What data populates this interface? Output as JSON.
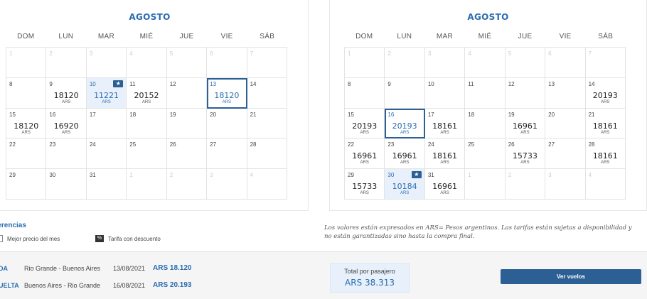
{
  "calendars": [
    {
      "title": "AGOSTO",
      "weekdays": [
        "DOM",
        "LUN",
        "MAR",
        "MIÉ",
        "JUE",
        "VIE",
        "SÁB"
      ],
      "cells": [
        {
          "day": "1",
          "other": true
        },
        {
          "day": "2",
          "other": true
        },
        {
          "day": "3",
          "other": true
        },
        {
          "day": "4",
          "other": true
        },
        {
          "day": "5",
          "other": true
        },
        {
          "day": "6",
          "other": true
        },
        {
          "day": "7",
          "other": true
        },
        {
          "day": "8"
        },
        {
          "day": "9",
          "price": "18120",
          "currency": "ARS"
        },
        {
          "day": "10",
          "price": "11221",
          "currency": "ARS",
          "best": true,
          "discount": true
        },
        {
          "day": "11",
          "price": "20152",
          "currency": "ARS"
        },
        {
          "day": "12"
        },
        {
          "day": "13",
          "price": "18120",
          "currency": "ARS",
          "selected": true
        },
        {
          "day": "14"
        },
        {
          "day": "15",
          "price": "18120",
          "currency": "ARS"
        },
        {
          "day": "16",
          "price": "16920",
          "currency": "ARS"
        },
        {
          "day": "17"
        },
        {
          "day": "18"
        },
        {
          "day": "19"
        },
        {
          "day": "20"
        },
        {
          "day": "21"
        },
        {
          "day": "22"
        },
        {
          "day": "23"
        },
        {
          "day": "24"
        },
        {
          "day": "25"
        },
        {
          "day": "26"
        },
        {
          "day": "27"
        },
        {
          "day": "28"
        },
        {
          "day": "29"
        },
        {
          "day": "30"
        },
        {
          "day": "31"
        },
        {
          "day": "1",
          "other": true
        },
        {
          "day": "2",
          "other": true
        },
        {
          "day": "3",
          "other": true
        },
        {
          "day": "4",
          "other": true
        }
      ]
    },
    {
      "title": "AGOSTO",
      "weekdays": [
        "DOM",
        "LUN",
        "MAR",
        "MIÉ",
        "JUE",
        "VIE",
        "SÁB"
      ],
      "cells": [
        {
          "day": "1",
          "other": true
        },
        {
          "day": "2",
          "other": true
        },
        {
          "day": "3",
          "other": true
        },
        {
          "day": "4",
          "other": true
        },
        {
          "day": "5",
          "other": true
        },
        {
          "day": "6",
          "other": true
        },
        {
          "day": "7",
          "other": true
        },
        {
          "day": "8"
        },
        {
          "day": "9"
        },
        {
          "day": "10"
        },
        {
          "day": "11"
        },
        {
          "day": "12"
        },
        {
          "day": "13"
        },
        {
          "day": "14",
          "price": "20193",
          "currency": "ARS"
        },
        {
          "day": "15",
          "price": "20193",
          "currency": "ARS"
        },
        {
          "day": "16",
          "price": "20193",
          "currency": "ARS",
          "selected": true
        },
        {
          "day": "17",
          "price": "18161",
          "currency": "ARS"
        },
        {
          "day": "18"
        },
        {
          "day": "19",
          "price": "16961",
          "currency": "ARS"
        },
        {
          "day": "20"
        },
        {
          "day": "21",
          "price": "18161",
          "currency": "ARS"
        },
        {
          "day": "22",
          "price": "16961",
          "currency": "ARS"
        },
        {
          "day": "23",
          "price": "16961",
          "currency": "ARS"
        },
        {
          "day": "24",
          "price": "18161",
          "currency": "ARS"
        },
        {
          "day": "25"
        },
        {
          "day": "26",
          "price": "15733",
          "currency": "ARS"
        },
        {
          "day": "27"
        },
        {
          "day": "28",
          "price": "18161",
          "currency": "ARS"
        },
        {
          "day": "29",
          "price": "15733",
          "currency": "ARS"
        },
        {
          "day": "30",
          "price": "10184",
          "currency": "ARS",
          "best": true,
          "discount": true
        },
        {
          "day": "31",
          "price": "16961",
          "currency": "ARS"
        },
        {
          "day": "1",
          "other": true
        },
        {
          "day": "2",
          "other": true
        },
        {
          "day": "3",
          "other": true
        },
        {
          "day": "4",
          "other": true
        }
      ]
    }
  ],
  "legend": {
    "title": "ferencias",
    "best_label": "Mejor precio del mes",
    "discount_label": "Tarifa con descuento"
  },
  "disclaimer": "Los valores están expresados en ARS= Pesos argentinos. Las tarifas están sujetas a disponibilidad y no están garantizadas sino hasta la compra final.",
  "summary": {
    "legs": [
      {
        "type": "DA",
        "route": "Rio Grande - Buenos Aires",
        "date": "13/08/2021",
        "amount": "ARS 18.120"
      },
      {
        "type": "UELTA",
        "route": "Buenos Aires - Rio Grande",
        "date": "16/08/2021",
        "amount": "ARS 20.193"
      }
    ],
    "total_label": "Total por pasajero",
    "total_value": "ARS 38.313",
    "cta_label": "Ver vuelos"
  },
  "colors": {
    "accent": "#2b6cb0",
    "button": "#2c5f94",
    "highlight": "#e8f1fb"
  },
  "icons": {
    "discount": "discount-tag-icon",
    "best": "best-price-icon"
  }
}
